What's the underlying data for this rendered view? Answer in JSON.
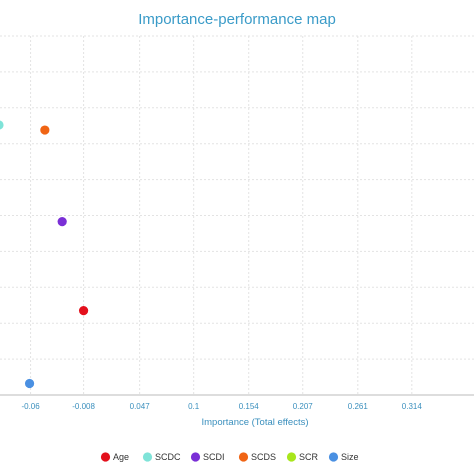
{
  "chart_data": {
    "type": "scatter",
    "title": "Importance-performance map",
    "xlabel": "Importance (Total effects)",
    "ylabel": "",
    "x_ticks": [
      -0.06,
      -0.008,
      0.047,
      0.1,
      0.154,
      0.207,
      0.261,
      0.314
    ],
    "x_tick_labels": [
      "-0.06",
      "-0.008",
      "0.047",
      "0.1",
      "0.154",
      "0.207",
      "0.261",
      "0.314"
    ],
    "xlim": [
      -0.09,
      0.375
    ],
    "ylim": [
      0,
      100
    ],
    "grid": true,
    "legend_position": "bottom",
    "series": [
      {
        "name": "Age",
        "color": "#e3101c",
        "points": [
          {
            "x": -0.008,
            "y": 23.5
          }
        ]
      },
      {
        "name": "SCDC",
        "color": "#7fe3d8",
        "points": [
          {
            "x": -0.091,
            "y": 75.2
          }
        ]
      },
      {
        "name": "SCDI",
        "color": "#7a2fd6",
        "points": [
          {
            "x": -0.029,
            "y": 48.3
          }
        ]
      },
      {
        "name": "SCDS",
        "color": "#f06414",
        "points": [
          {
            "x": -0.046,
            "y": 73.8
          }
        ]
      },
      {
        "name": "SCR",
        "color": "#a8e61c",
        "points": []
      },
      {
        "name": "Size",
        "color": "#4a90e2",
        "points": [
          {
            "x": -0.061,
            "y": 3.2
          }
        ]
      }
    ]
  }
}
